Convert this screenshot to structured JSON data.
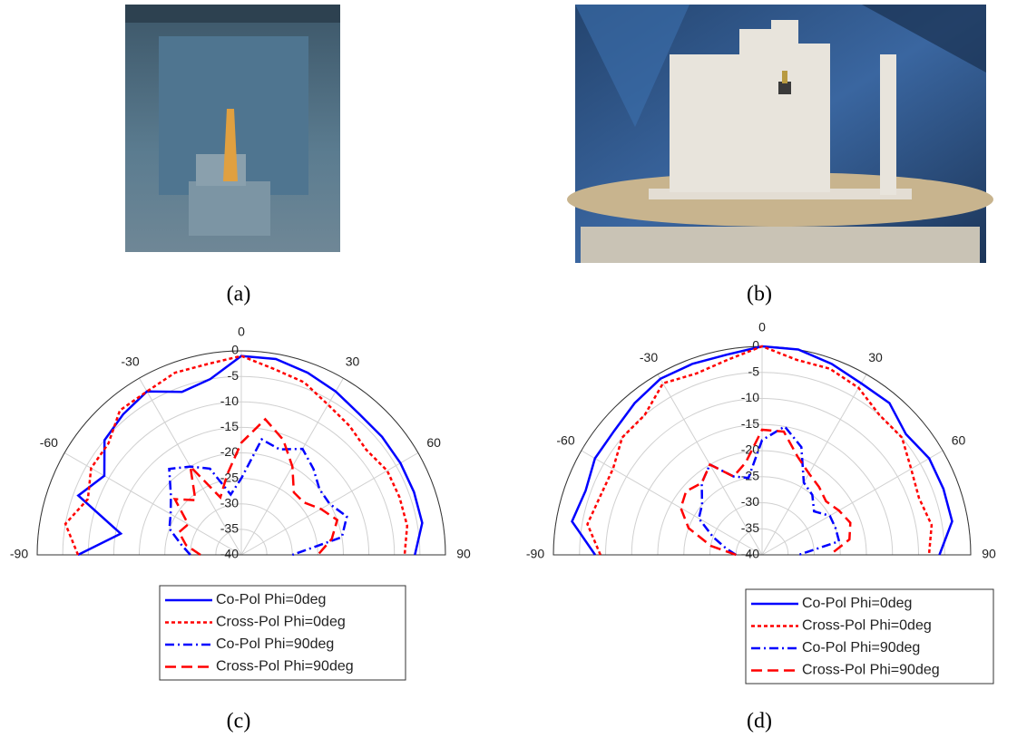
{
  "captions": [
    "(a)",
    "(b)",
    "(c)",
    "(d)"
  ],
  "chart_data": [
    {
      "type": "polar",
      "x": [
        -90,
        -80,
        -70,
        -60,
        -50,
        -40,
        -30,
        -20,
        -10,
        0,
        10,
        20,
        30,
        40,
        50,
        60,
        70,
        80,
        90
      ],
      "xlim": [
        -90,
        90
      ],
      "xticks": [
        -90,
        -60,
        -30,
        0,
        30,
        60,
        90
      ],
      "ylim": [
        -40,
        0
      ],
      "yticks": [
        0,
        -5,
        -10,
        -15,
        -20,
        -25,
        -30,
        -35,
        -40
      ],
      "grid": true,
      "series": [
        {
          "name": "Co-Pol Phi=0deg",
          "color": "#0000ff",
          "dash": "solid",
          "values": [
            -8,
            -16,
            -6,
            -9,
            -5,
            -4,
            -3,
            -6,
            -5,
            -1,
            -1,
            -2,
            -3,
            -4,
            -4,
            -4,
            -4,
            -4,
            -6
          ]
        },
        {
          "name": "Cross-Pol Phi=0deg",
          "color": "#ff0000",
          "dash": "dot",
          "values": [
            -8,
            -5,
            -8,
            -6,
            -6,
            -3,
            -3,
            -2,
            -2,
            -1,
            -3,
            -4,
            -6,
            -7,
            -8,
            -7,
            -7,
            -7,
            -8
          ]
        },
        {
          "name": "Co-Pol Phi=90deg",
          "color": "#0000ff",
          "dash": "dashdot",
          "values": [
            -30,
            -28,
            -25,
            -24,
            -22,
            -18,
            -20,
            -22,
            -28,
            -25,
            -17,
            -18,
            -16,
            -18,
            -20,
            -20,
            -18,
            -20,
            -30
          ]
        },
        {
          "name": "Cross-Pol Phi=90deg",
          "color": "#ff0000",
          "dash": "dash",
          "values": [
            -32,
            -29,
            -27,
            -28,
            -23,
            -26,
            -20,
            -28,
            -24,
            -18,
            -13,
            -16,
            -20,
            -24,
            -24,
            -22,
            -20,
            -22,
            -25
          ]
        }
      ]
    },
    {
      "type": "polar",
      "x": [
        -90,
        -80,
        -70,
        -60,
        -50,
        -40,
        -30,
        -20,
        -10,
        0,
        10,
        20,
        30,
        40,
        50,
        60,
        70,
        80,
        90
      ],
      "xlim": [
        -90,
        90
      ],
      "xticks": [
        -90,
        -60,
        -30,
        0,
        30,
        60,
        90
      ],
      "ylim": [
        -40,
        0
      ],
      "yticks": [
        0,
        -5,
        -10,
        -15,
        -20,
        -25,
        -30,
        -35,
        -40
      ],
      "grid": true,
      "series": [
        {
          "name": "Co-Pol Phi=0deg",
          "color": "#0000ff",
          "dash": "solid",
          "values": [
            -8,
            -3,
            -4,
            -3,
            -3,
            -2,
            -1,
            -1,
            -1,
            0,
            0,
            -1,
            -2,
            -2,
            -4,
            -3,
            -3,
            -3,
            -6
          ]
        },
        {
          "name": "Cross-Pol Phi=0deg",
          "color": "#ff0000",
          "dash": "dot",
          "values": [
            -9,
            -6,
            -7,
            -7,
            -5,
            -5,
            -2,
            -3,
            -2,
            0,
            -2,
            -2,
            -3,
            -5,
            -5,
            -7,
            -8,
            -7,
            -8
          ]
        },
        {
          "name": "Co-Pol Phi=90deg",
          "color": "#0000ff",
          "dash": "dashdot",
          "values": [
            -35,
            -33,
            -30,
            -26,
            -25,
            -22,
            -20,
            -24,
            -25,
            -18,
            -15,
            -18,
            -24,
            -25,
            -27,
            -25,
            -25,
            -25,
            -33
          ]
        },
        {
          "name": "Cross-Pol Phi=90deg",
          "color": "#ff0000",
          "dash": "dash",
          "values": [
            -35,
            -30,
            -25,
            -22,
            -21,
            -22,
            -20,
            -24,
            -22,
            -16,
            -16,
            -20,
            -22,
            -23,
            -24,
            -23,
            -22,
            -23,
            -27
          ]
        }
      ]
    }
  ]
}
